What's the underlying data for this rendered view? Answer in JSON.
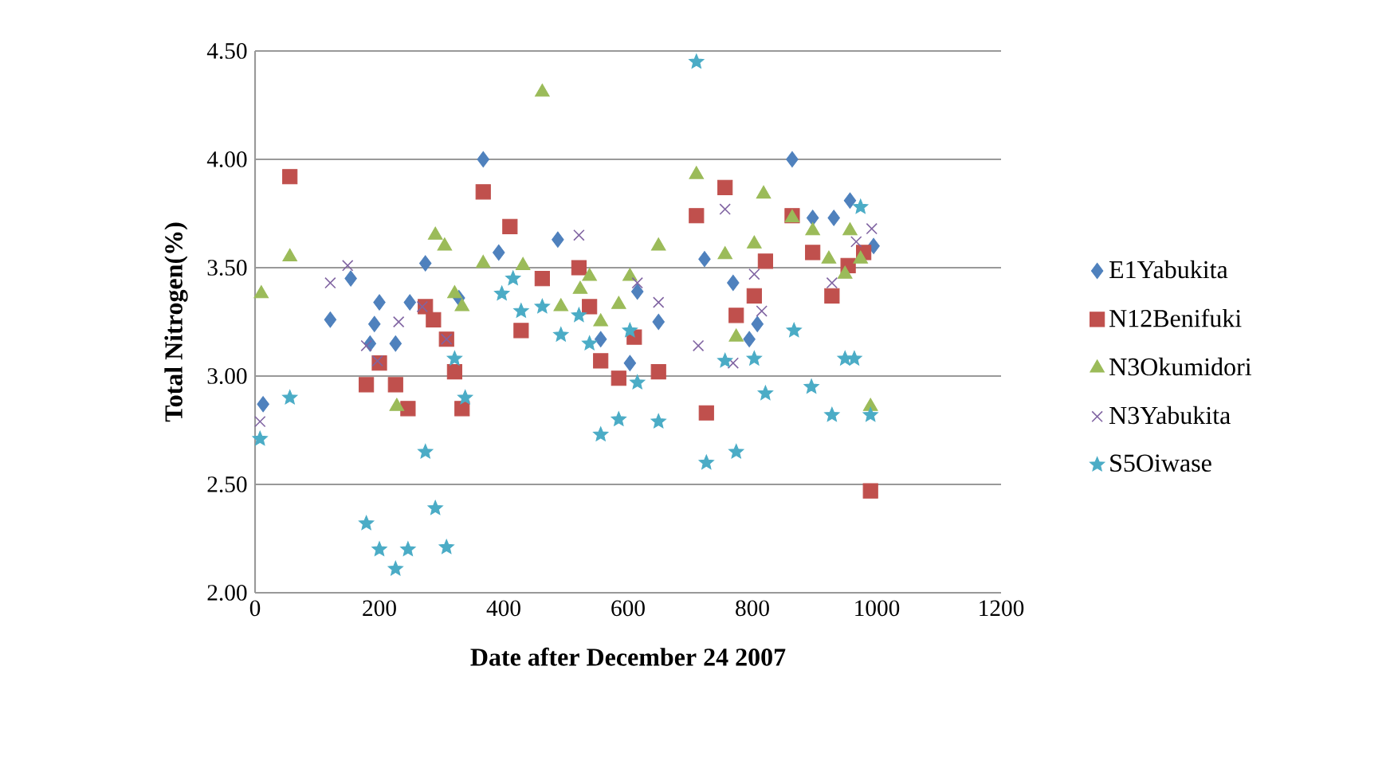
{
  "chart_data": {
    "type": "scatter",
    "xlabel": "Date after December 24 2007",
    "ylabel": "Total Nitrogen(%)",
    "xlim": [
      0,
      1200
    ],
    "xticks": [
      0,
      200,
      400,
      600,
      800,
      1000,
      1200
    ],
    "ylim": [
      2.0,
      4.5
    ],
    "yticks": [
      {
        "value": 2.0,
        "label": "2.00"
      },
      {
        "value": 2.5,
        "label": "2.50"
      },
      {
        "value": 3.0,
        "label": "3.00"
      },
      {
        "value": 3.5,
        "label": "3.50"
      },
      {
        "value": 4.0,
        "label": "4.00"
      },
      {
        "value": 4.5,
        "label": "4.50"
      }
    ],
    "grid": "y",
    "legend": "right",
    "series": [
      {
        "name": "E1Yabukita",
        "color": "#4f81bd",
        "marker": "diamond",
        "x": [
          13,
          121,
          154,
          200,
          192,
          185,
          226,
          249,
          274,
          367,
          328,
          392,
          487,
          615,
          649,
          556,
          603,
          723,
          769,
          864,
          897,
          931,
          957,
          995,
          808,
          795
        ],
        "values": [
          2.87,
          3.26,
          3.45,
          3.34,
          3.24,
          3.15,
          3.15,
          3.34,
          3.52,
          4.0,
          3.36,
          3.57,
          3.63,
          3.39,
          3.25,
          3.17,
          3.06,
          3.54,
          3.43,
          4.0,
          3.73,
          3.73,
          3.81,
          3.6,
          3.24,
          3.17
        ]
      },
      {
        "name": "N12Benifuki",
        "color": "#c0504d",
        "marker": "square",
        "x": [
          56,
          367,
          410,
          274,
          287,
          308,
          321,
          333,
          200,
          179,
          226,
          246,
          462,
          521,
          428,
          538,
          556,
          585,
          610,
          649,
          710,
          756,
          726,
          774,
          864,
          897,
          821,
          803,
          954,
          928,
          979,
          990
        ],
        "values": [
          3.92,
          3.85,
          3.69,
          3.32,
          3.26,
          3.17,
          3.02,
          2.85,
          3.06,
          2.96,
          2.96,
          2.85,
          3.45,
          3.5,
          3.21,
          3.32,
          3.07,
          2.99,
          3.18,
          3.02,
          3.74,
          3.87,
          2.83,
          3.28,
          3.74,
          3.57,
          3.53,
          3.37,
          3.51,
          3.37,
          3.57,
          2.47
        ]
      },
      {
        "name": "N3Okumidori",
        "color": "#9bbb59",
        "marker": "triangle",
        "x": [
          10,
          56,
          290,
          305,
          367,
          321,
          333,
          228,
          462,
          431,
          492,
          523,
          538,
          556,
          585,
          603,
          649,
          710,
          756,
          774,
          803,
          818,
          864,
          897,
          957,
          923,
          949,
          974,
          990
        ],
        "values": [
          3.38,
          3.55,
          3.65,
          3.6,
          3.52,
          3.38,
          3.32,
          2.86,
          4.31,
          3.51,
          3.32,
          3.4,
          3.46,
          3.25,
          3.33,
          3.46,
          3.6,
          3.93,
          3.56,
          3.18,
          3.61,
          3.84,
          3.73,
          3.67,
          3.67,
          3.54,
          3.47,
          3.54,
          2.86
        ]
      },
      {
        "name": "N3Yabukita",
        "color": "#8064a2",
        "marker": "cross",
        "x": [
          8,
          121,
          149,
          179,
          197,
          231,
          269,
          308,
          521,
          615,
          649,
          713,
          756,
          769,
          992,
          967,
          928,
          803,
          815
        ],
        "values": [
          2.79,
          3.43,
          3.51,
          3.14,
          3.07,
          3.25,
          3.32,
          3.17,
          3.65,
          3.43,
          3.34,
          3.14,
          3.77,
          3.06,
          3.68,
          3.62,
          3.43,
          3.47,
          3.3
        ]
      },
      {
        "name": "S5Oiwase",
        "color": "#4bacc6",
        "marker": "star",
        "x": [
          8,
          56,
          274,
          179,
          290,
          200,
          226,
          246,
          308,
          321,
          338,
          397,
          710,
          415,
          428,
          462,
          492,
          521,
          538,
          556,
          585,
          603,
          615,
          649,
          726,
          774,
          756,
          803,
          821,
          867,
          895,
          928,
          949,
          964,
          990,
          974
        ],
        "values": [
          2.71,
          2.9,
          2.65,
          2.32,
          2.39,
          2.2,
          2.11,
          2.2,
          2.21,
          3.08,
          2.9,
          3.38,
          4.45,
          3.45,
          3.3,
          3.32,
          3.19,
          3.28,
          3.15,
          2.73,
          2.8,
          3.21,
          2.97,
          2.79,
          2.6,
          2.65,
          3.07,
          3.08,
          2.92,
          3.21,
          2.95,
          2.82,
          3.08,
          3.08,
          2.82,
          3.78
        ]
      }
    ]
  }
}
